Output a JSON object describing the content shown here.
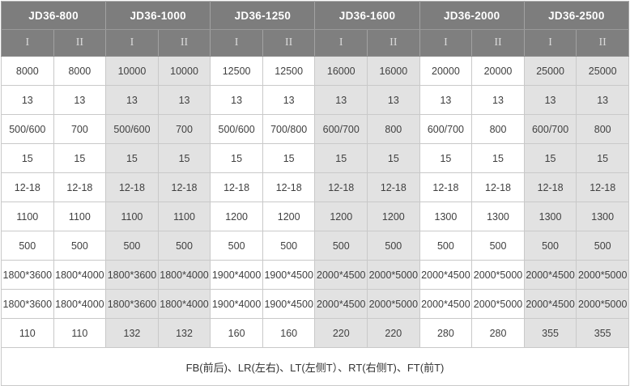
{
  "chart_data": {
    "type": "table",
    "column_groups": [
      "JD36-800",
      "JD36-1000",
      "JD36-1250",
      "JD36-1600",
      "JD36-2000",
      "JD36-2500"
    ],
    "sub_columns": [
      "I",
      "II"
    ],
    "rows": [
      [
        "8000",
        "8000",
        "10000",
        "10000",
        "12500",
        "12500",
        "16000",
        "16000",
        "20000",
        "20000",
        "25000",
        "25000"
      ],
      [
        "13",
        "13",
        "13",
        "13",
        "13",
        "13",
        "13",
        "13",
        "13",
        "13",
        "13",
        "13"
      ],
      [
        "500/600",
        "700",
        "500/600",
        "700",
        "500/600",
        "700/800",
        "600/700",
        "800",
        "600/700",
        "800",
        "600/700",
        "800"
      ],
      [
        "15",
        "15",
        "15",
        "15",
        "15",
        "15",
        "15",
        "15",
        "15",
        "15",
        "15",
        "15"
      ],
      [
        "12-18",
        "12-18",
        "12-18",
        "12-18",
        "12-18",
        "12-18",
        "12-18",
        "12-18",
        "12-18",
        "12-18",
        "12-18",
        "12-18"
      ],
      [
        "1100",
        "1100",
        "1100",
        "1100",
        "1200",
        "1200",
        "1200",
        "1200",
        "1300",
        "1300",
        "1300",
        "1300"
      ],
      [
        "500",
        "500",
        "500",
        "500",
        "500",
        "500",
        "500",
        "500",
        "500",
        "500",
        "500",
        "500"
      ],
      [
        "1800*3600",
        "1800*4000",
        "1800*3600",
        "1800*4000",
        "1900*4000",
        "1900*4500",
        "2000*4500",
        "2000*5000",
        "2000*4500",
        "2000*5000",
        "2000*4500",
        "2000*5000"
      ],
      [
        "1800*3600",
        "1800*4000",
        "1800*3600",
        "1800*4000",
        "1900*4000",
        "1900*4500",
        "2000*4500",
        "2000*5000",
        "2000*4500",
        "2000*5000",
        "2000*4500",
        "2000*5000"
      ],
      [
        "110",
        "110",
        "132",
        "132",
        "160",
        "160",
        "220",
        "220",
        "280",
        "280",
        "355",
        "355"
      ]
    ],
    "footer_note": "FB(前后)、LR(左右)、LT(左侧T）、RT(右侧T)、FT(前T)",
    "layout": {
      "alternating_group_shading": [
        "#ffffff",
        "#e2e2e2"
      ],
      "header_bg": "#7d7d7d",
      "header_text": "#ffffff",
      "subheader_text": "#d9d9d9",
      "border_color": "#c9c9c9"
    }
  }
}
